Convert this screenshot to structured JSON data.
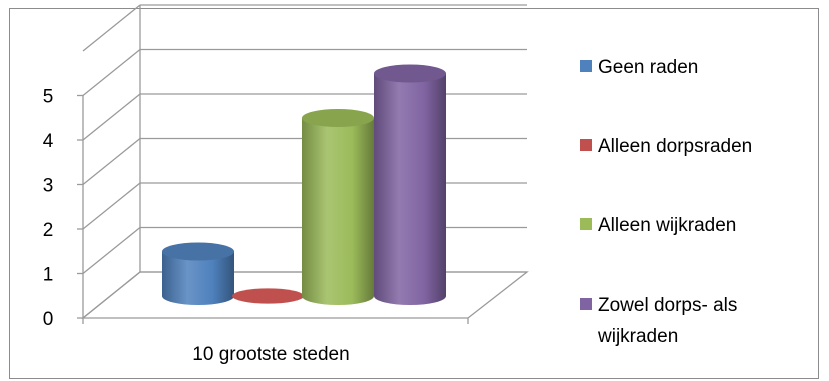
{
  "chart_data": {
    "type": "bar",
    "style": "3d-cylinder",
    "categories": [
      "10 grootste steden"
    ],
    "series": [
      {
        "name": "Geen raden",
        "values": [
          1
        ],
        "color": "#4f81bd"
      },
      {
        "name": "Alleen dorpsraden",
        "values": [
          0
        ],
        "color": "#c0504d"
      },
      {
        "name": "Alleen wijkraden",
        "values": [
          4
        ],
        "color": "#9bbb59"
      },
      {
        "name": "Zowel dorps- als wijkraden",
        "values": [
          5
        ],
        "color": "#8064a2"
      }
    ],
    "ylim": [
      0,
      5
    ],
    "yticks": [
      "0",
      "1",
      "2",
      "3",
      "4",
      "5"
    ],
    "grid": true,
    "legend": "right"
  }
}
